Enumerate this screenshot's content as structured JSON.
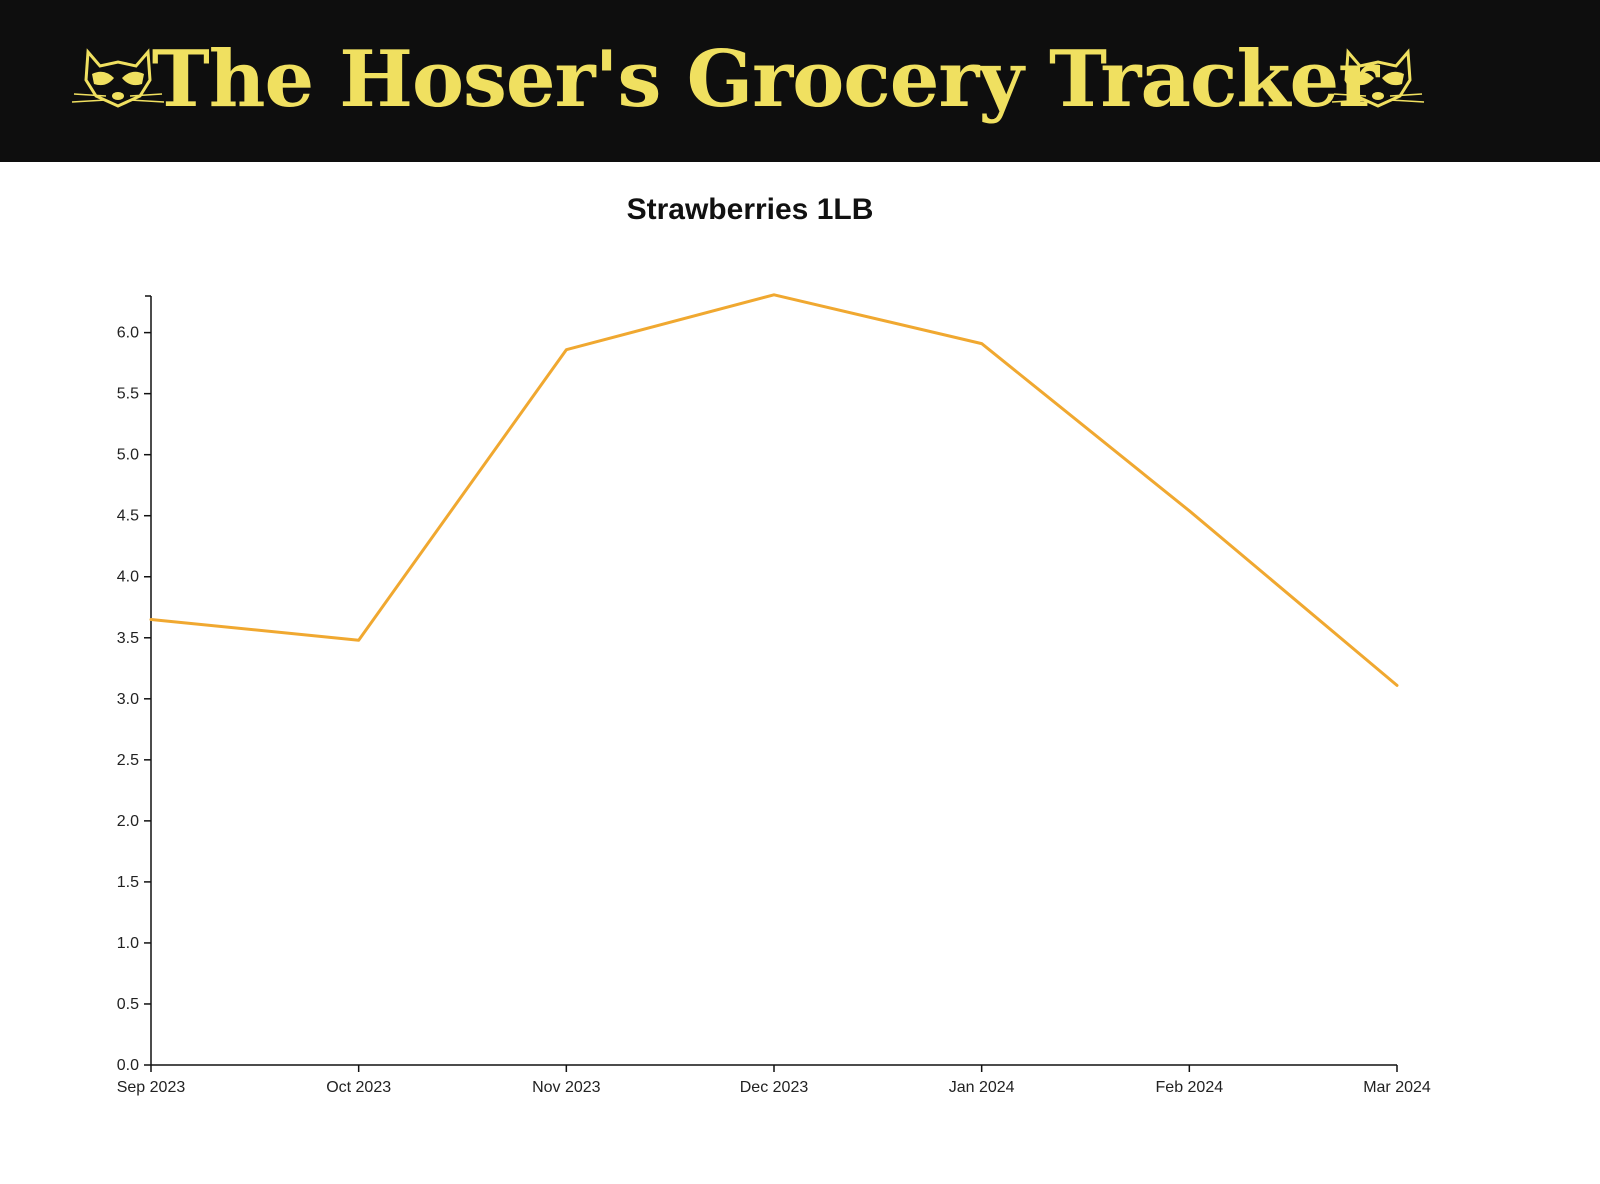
{
  "header": {
    "title": "The Hoser's Grocery Tracker",
    "logo_icon": "raccoon-icon",
    "background": "#0e0e0e",
    "accent": "#f0e060"
  },
  "chart_data": {
    "type": "line",
    "title": "Strawberries 1LB",
    "x": [
      "Sep 2023",
      "Oct 2023",
      "Nov 2023",
      "Dec 2023",
      "Jan 2024",
      "Feb 2024",
      "Mar 2024"
    ],
    "series": [
      {
        "values": [
          3.65,
          3.48,
          5.86,
          6.31,
          5.91,
          4.54,
          3.11
        ],
        "color": "#f0a830"
      }
    ],
    "xlabel": "",
    "ylabel": "",
    "ylim": [
      0,
      6.3
    ],
    "yticks": [
      "0.0",
      "0.5",
      "1.0",
      "1.5",
      "2.0",
      "2.5",
      "3.0",
      "3.5",
      "4.0",
      "4.5",
      "5.0",
      "5.5",
      "6.0"
    ],
    "grid": false
  }
}
